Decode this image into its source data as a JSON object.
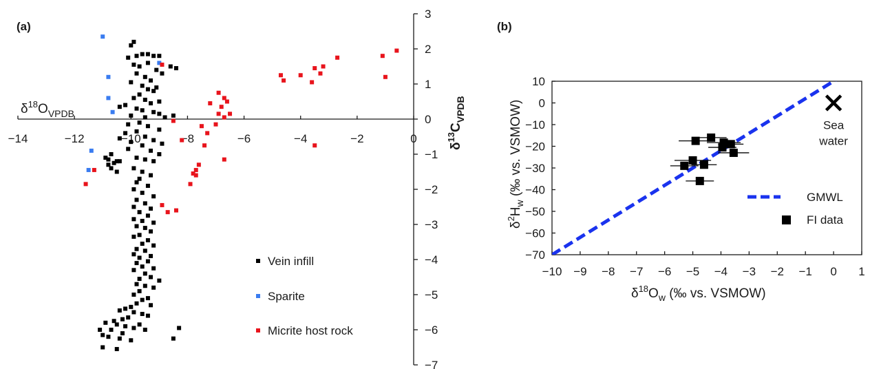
{
  "chart_data": [
    {
      "type": "scatter",
      "panel_label": "(a)",
      "xlabel_base": "δ",
      "xlabel_sup": "18",
      "xlabel_main": "O",
      "xlabel_sub": "VPDB",
      "ylabel_base": "δ",
      "ylabel_sup": "13",
      "ylabel_main": "C",
      "ylabel_sub": "VPDB",
      "xlim": [
        -14,
        0
      ],
      "ylim": [
        -7,
        3
      ],
      "x_ticks": [
        -14,
        -12,
        -10,
        -8,
        -6,
        -4,
        -2,
        0
      ],
      "x_tick_labels": [
        "−14",
        "−12",
        "−10",
        "−8",
        "−6",
        "−4",
        "−2",
        "0"
      ],
      "y_ticks": [
        3,
        2,
        1,
        0,
        -1,
        -2,
        -3,
        -4,
        -5,
        -6,
        -7
      ],
      "y_tick_labels": [
        "3",
        "2",
        "1",
        "0",
        "−1",
        "−2",
        "−3",
        "−4",
        "−5",
        "−6",
        "−7"
      ],
      "axes_cross_at_origin": true,
      "grid": false,
      "legend_position": "bottom-right",
      "series": [
        {
          "name": "Vein infill",
          "color": "#000000",
          "points": [
            [
              -9.9,
              2.2
            ],
            [
              -10.0,
              2.1
            ],
            [
              -9.8,
              1.8
            ],
            [
              -9.6,
              1.85
            ],
            [
              -9.4,
              1.85
            ],
            [
              -9.2,
              1.8
            ],
            [
              -9.0,
              1.8
            ],
            [
              -10.1,
              1.75
            ],
            [
              -8.6,
              1.5
            ],
            [
              -8.4,
              1.45
            ],
            [
              -9.9,
              1.55
            ],
            [
              -9.7,
              1.5
            ],
            [
              -9.4,
              1.6
            ],
            [
              -9.1,
              1.4
            ],
            [
              -8.9,
              1.3
            ],
            [
              -9.8,
              1.3
            ],
            [
              -9.5,
              1.2
            ],
            [
              -9.3,
              1.1
            ],
            [
              -10.0,
              1.05
            ],
            [
              -9.6,
              0.95
            ],
            [
              -9.1,
              0.9
            ],
            [
              -9.4,
              0.85
            ],
            [
              -9.2,
              0.8
            ],
            [
              -9.7,
              0.7
            ],
            [
              -9.9,
              0.6
            ],
            [
              -9.5,
              0.55
            ],
            [
              -9.0,
              0.5
            ],
            [
              -9.3,
              0.45
            ],
            [
              -10.2,
              0.4
            ],
            [
              -10.4,
              0.35
            ],
            [
              -9.8,
              0.3
            ],
            [
              -9.6,
              0.25
            ],
            [
              -9.2,
              0.2
            ],
            [
              -9.0,
              0.15
            ],
            [
              -10.0,
              0.1
            ],
            [
              -9.5,
              0.05
            ],
            [
              -8.8,
              0.05
            ],
            [
              -8.5,
              0.1
            ],
            [
              -9.7,
              -0.1
            ],
            [
              -10.1,
              -0.15
            ],
            [
              -9.4,
              -0.2
            ],
            [
              -9.0,
              -0.3
            ],
            [
              -9.8,
              -0.35
            ],
            [
              -10.2,
              -0.4
            ],
            [
              -10.4,
              -0.55
            ],
            [
              -9.5,
              -0.5
            ],
            [
              -9.2,
              -0.6
            ],
            [
              -8.9,
              -0.7
            ],
            [
              -10.0,
              -0.65
            ],
            [
              -9.6,
              -0.75
            ],
            [
              -10.1,
              -0.85
            ],
            [
              -9.3,
              -0.9
            ],
            [
              -9.0,
              -1.0
            ],
            [
              -10.7,
              -1.0
            ],
            [
              -10.9,
              -1.1
            ],
            [
              -10.8,
              -1.15
            ],
            [
              -10.5,
              -1.2
            ],
            [
              -10.6,
              -1.25
            ],
            [
              -10.4,
              -1.2
            ],
            [
              -10.8,
              -1.3
            ],
            [
              -10.7,
              -1.4
            ],
            [
              -10.5,
              -1.5
            ],
            [
              -9.8,
              -1.1
            ],
            [
              -9.5,
              -1.15
            ],
            [
              -9.2,
              -1.2
            ],
            [
              -9.9,
              -1.4
            ],
            [
              -9.6,
              -1.5
            ],
            [
              -9.3,
              -1.6
            ],
            [
              -9.7,
              -1.7
            ],
            [
              -9.8,
              -1.8
            ],
            [
              -9.4,
              -1.9
            ],
            [
              -9.9,
              -2.0
            ],
            [
              -9.6,
              -2.1
            ],
            [
              -9.2,
              -2.2
            ],
            [
              -9.8,
              -2.3
            ],
            [
              -9.5,
              -2.4
            ],
            [
              -9.9,
              -2.5
            ],
            [
              -9.3,
              -2.55
            ],
            [
              -9.7,
              -2.65
            ],
            [
              -9.4,
              -2.75
            ],
            [
              -9.9,
              -2.85
            ],
            [
              -9.6,
              -2.9
            ],
            [
              -9.2,
              -2.95
            ],
            [
              -9.8,
              -3.05
            ],
            [
              -9.5,
              -3.1
            ],
            [
              -9.3,
              -3.2
            ],
            [
              -9.7,
              -3.3
            ],
            [
              -9.9,
              -3.35
            ],
            [
              -9.4,
              -3.45
            ],
            [
              -9.6,
              -3.55
            ],
            [
              -9.2,
              -3.6
            ],
            [
              -9.8,
              -3.7
            ],
            [
              -9.5,
              -3.75
            ],
            [
              -9.9,
              -3.85
            ],
            [
              -9.3,
              -3.9
            ],
            [
              -9.7,
              -3.95
            ],
            [
              -9.4,
              -4.05
            ],
            [
              -9.8,
              -4.1
            ],
            [
              -9.6,
              -4.2
            ],
            [
              -9.2,
              -4.25
            ],
            [
              -9.9,
              -4.3
            ],
            [
              -9.5,
              -4.4
            ],
            [
              -9.3,
              -4.5
            ],
            [
              -9.7,
              -4.55
            ],
            [
              -9.0,
              -4.6
            ],
            [
              -9.8,
              -4.7
            ],
            [
              -9.5,
              -4.75
            ],
            [
              -9.2,
              -4.8
            ],
            [
              -9.7,
              -4.9
            ],
            [
              -9.9,
              -5.0
            ],
            [
              -9.4,
              -5.1
            ],
            [
              -9.6,
              -5.15
            ],
            [
              -9.8,
              -5.25
            ],
            [
              -9.3,
              -5.3
            ],
            [
              -10.0,
              -5.35
            ],
            [
              -10.2,
              -5.4
            ],
            [
              -10.4,
              -5.45
            ],
            [
              -9.9,
              -5.5
            ],
            [
              -9.6,
              -5.55
            ],
            [
              -9.4,
              -5.6
            ],
            [
              -10.1,
              -5.65
            ],
            [
              -10.3,
              -5.7
            ],
            [
              -10.6,
              -5.75
            ],
            [
              -10.9,
              -5.8
            ],
            [
              -10.5,
              -5.85
            ],
            [
              -10.2,
              -5.9
            ],
            [
              -9.9,
              -5.95
            ],
            [
              -10.7,
              -6.0
            ],
            [
              -11.1,
              -6.0
            ],
            [
              -11.0,
              -6.15
            ],
            [
              -10.8,
              -6.2
            ],
            [
              -10.4,
              -6.25
            ],
            [
              -10.0,
              -6.3
            ],
            [
              -8.5,
              -6.25
            ],
            [
              -11.0,
              -6.5
            ],
            [
              -10.5,
              -6.55
            ],
            [
              -9.7,
              -5.85
            ],
            [
              -9.5,
              -6.0
            ],
            [
              -8.3,
              -5.95
            ],
            [
              -10.3,
              -6.1
            ]
          ]
        },
        {
          "name": "Sparite",
          "color": "#3a7cf0",
          "points": [
            [
              -11.0,
              2.35
            ],
            [
              -10.8,
              1.2
            ],
            [
              -10.8,
              0.6
            ],
            [
              -10.65,
              0.2
            ],
            [
              -9.0,
              1.6
            ],
            [
              -11.4,
              -0.9
            ],
            [
              -11.5,
              -1.45
            ]
          ]
        },
        {
          "name": "Micrite host rock",
          "color": "#e8141c",
          "points": [
            [
              -0.6,
              1.95
            ],
            [
              -1.1,
              1.8
            ],
            [
              -2.7,
              1.75
            ],
            [
              -3.2,
              1.5
            ],
            [
              -3.5,
              1.45
            ],
            [
              -3.3,
              1.3
            ],
            [
              -4.0,
              1.25
            ],
            [
              -4.7,
              1.25
            ],
            [
              -4.6,
              1.1
            ],
            [
              -3.6,
              1.05
            ],
            [
              -1.0,
              1.2
            ],
            [
              -3.5,
              -0.75
            ],
            [
              -8.9,
              1.55
            ],
            [
              -6.9,
              0.75
            ],
            [
              -6.7,
              0.6
            ],
            [
              -6.6,
              0.5
            ],
            [
              -6.8,
              0.35
            ],
            [
              -6.5,
              0.15
            ],
            [
              -7.2,
              0.45
            ],
            [
              -6.9,
              0.15
            ],
            [
              -6.7,
              0.05
            ],
            [
              -7.0,
              -0.15
            ],
            [
              -7.3,
              -0.4
            ],
            [
              -7.5,
              -0.2
            ],
            [
              -8.2,
              -0.6
            ],
            [
              -7.4,
              -0.75
            ],
            [
              -6.7,
              -1.15
            ],
            [
              -7.6,
              -1.3
            ],
            [
              -7.7,
              -1.45
            ],
            [
              -7.8,
              -1.55
            ],
            [
              -7.9,
              -1.85
            ],
            [
              -7.7,
              -1.6
            ],
            [
              -8.9,
              -2.45
            ],
            [
              -8.7,
              -2.65
            ],
            [
              -8.4,
              -2.6
            ],
            [
              -11.3,
              -1.45
            ],
            [
              -11.6,
              -1.85
            ],
            [
              -8.5,
              -0.05
            ]
          ]
        }
      ]
    },
    {
      "type": "scatter",
      "panel_label": "(b)",
      "xlabel_base": "δ",
      "xlabel_sup": "18",
      "xlabel_main": "O",
      "xlabel_sub": "w",
      "xlabel_tail": " (‰ vs. VSMOW)",
      "ylabel_base": "δ",
      "ylabel_sup": "2",
      "ylabel_main": "H",
      "ylabel_sub": "w",
      "ylabel_tail": " (‰ vs. VSMOW)",
      "xlim": [
        -10,
        1
      ],
      "ylim": [
        -70,
        10
      ],
      "x_ticks": [
        -10,
        -9,
        -8,
        -7,
        -6,
        -5,
        -4,
        -3,
        -2,
        -1,
        0,
        1
      ],
      "x_tick_labels": [
        "−10",
        "−9",
        "−8",
        "−7",
        "−6",
        "−5",
        "−4",
        "−3",
        "−2",
        "−1",
        "0",
        "1"
      ],
      "y_ticks": [
        10,
        0,
        -10,
        -20,
        -30,
        -40,
        -50,
        -60,
        -70
      ],
      "y_tick_labels": [
        "10",
        "0",
        "−10",
        "−20",
        "−30",
        "−40",
        "−50",
        "−60",
        "−70"
      ],
      "grid": false,
      "legend_position": "bottom-right",
      "gmwl": {
        "name": "GMWL",
        "color": "#1a33ee",
        "style": "dashed",
        "slope": 8,
        "intercept": 10,
        "x_range": [
          -10,
          0
        ]
      },
      "fi_data": {
        "name": "FI data",
        "color": "#000000",
        "points": [
          {
            "x": -4.9,
            "y": -17.5,
            "xerr": 0.6
          },
          {
            "x": -4.35,
            "y": -16.0,
            "xerr": 0.55
          },
          {
            "x": -3.9,
            "y": -18.3,
            "xerr": 0.6
          },
          {
            "x": -3.65,
            "y": -19.0,
            "xerr": 0.45
          },
          {
            "x": -3.95,
            "y": -20.5,
            "xerr": 0.5
          },
          {
            "x": -3.55,
            "y": -23.0,
            "xerr": 0.55
          },
          {
            "x": -5.0,
            "y": -26.5,
            "xerr": 0.65
          },
          {
            "x": -5.3,
            "y": -29.0,
            "xerr": 0.5
          },
          {
            "x": -4.6,
            "y": -28.5,
            "xerr": 0.45
          },
          {
            "x": -4.75,
            "y": -36.0,
            "xerr": 0.5
          }
        ]
      },
      "sea_water": {
        "x": 0,
        "y": 0,
        "label_line1": "Sea",
        "label_line2": "water"
      }
    }
  ]
}
